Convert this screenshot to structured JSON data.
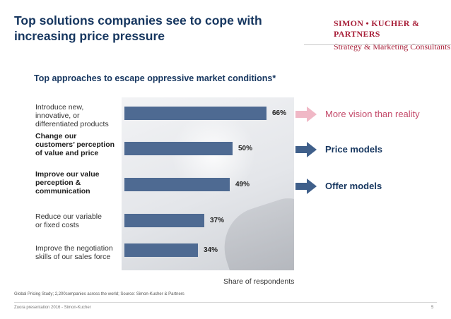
{
  "header": {
    "title": "Top solutions companies see to cope with increasing price pressure",
    "brand_name": "SIMON • KUCHER & PARTNERS",
    "brand_tagline": "Strategy & Marketing Consultants"
  },
  "chart_data": {
    "type": "bar",
    "orientation": "horizontal",
    "title": "Top approaches to escape oppressive market conditions*",
    "xlabel": "Share of respondents",
    "ylabel": "",
    "xlim": [
      0,
      100
    ],
    "grid": false,
    "categories": [
      "Introduce new, innovative, or differentiated products",
      "Change our customers' perception of value and price",
      "Improve our value perception & communication",
      "Reduce our variable or fixed costs",
      "Improve the negotiation skills of our sales force"
    ],
    "category_lines": [
      [
        "Introduce new,",
        "innovative, or",
        "differentiated products"
      ],
      [
        "Change our",
        "customers’ perception",
        "of value and price"
      ],
      [
        "Improve our value",
        "perception &",
        "communication"
      ],
      [
        "Reduce our variable",
        "or fixed costs"
      ],
      [
        "Improve the negotiation",
        "skills of our sales force"
      ]
    ],
    "category_bold": [
      false,
      true,
      true,
      false,
      false
    ],
    "values": [
      66,
      50,
      49,
      37,
      34
    ],
    "value_labels": [
      "66%",
      "50%",
      "49%",
      "37%",
      "34%"
    ],
    "bar_color": "#4e6a92",
    "annotations": [
      {
        "text": "More vision than reality",
        "row": 0,
        "style": "muted",
        "arrow_color": "#f0b8c6"
      },
      {
        "text": "Price models",
        "row": 1,
        "style": "strong",
        "arrow_color": "#3f5f8a"
      },
      {
        "text": "Offer models",
        "row": 2,
        "style": "strong",
        "arrow_color": "#3f5f8a"
      }
    ]
  },
  "footer": {
    "source": "Global Pricing Study; 2,200companies across the world; Source: Simon-Kucher & Partners",
    "presentation": "Zuora presentation 2016 - Simon-Kucher",
    "page_number": "5"
  }
}
